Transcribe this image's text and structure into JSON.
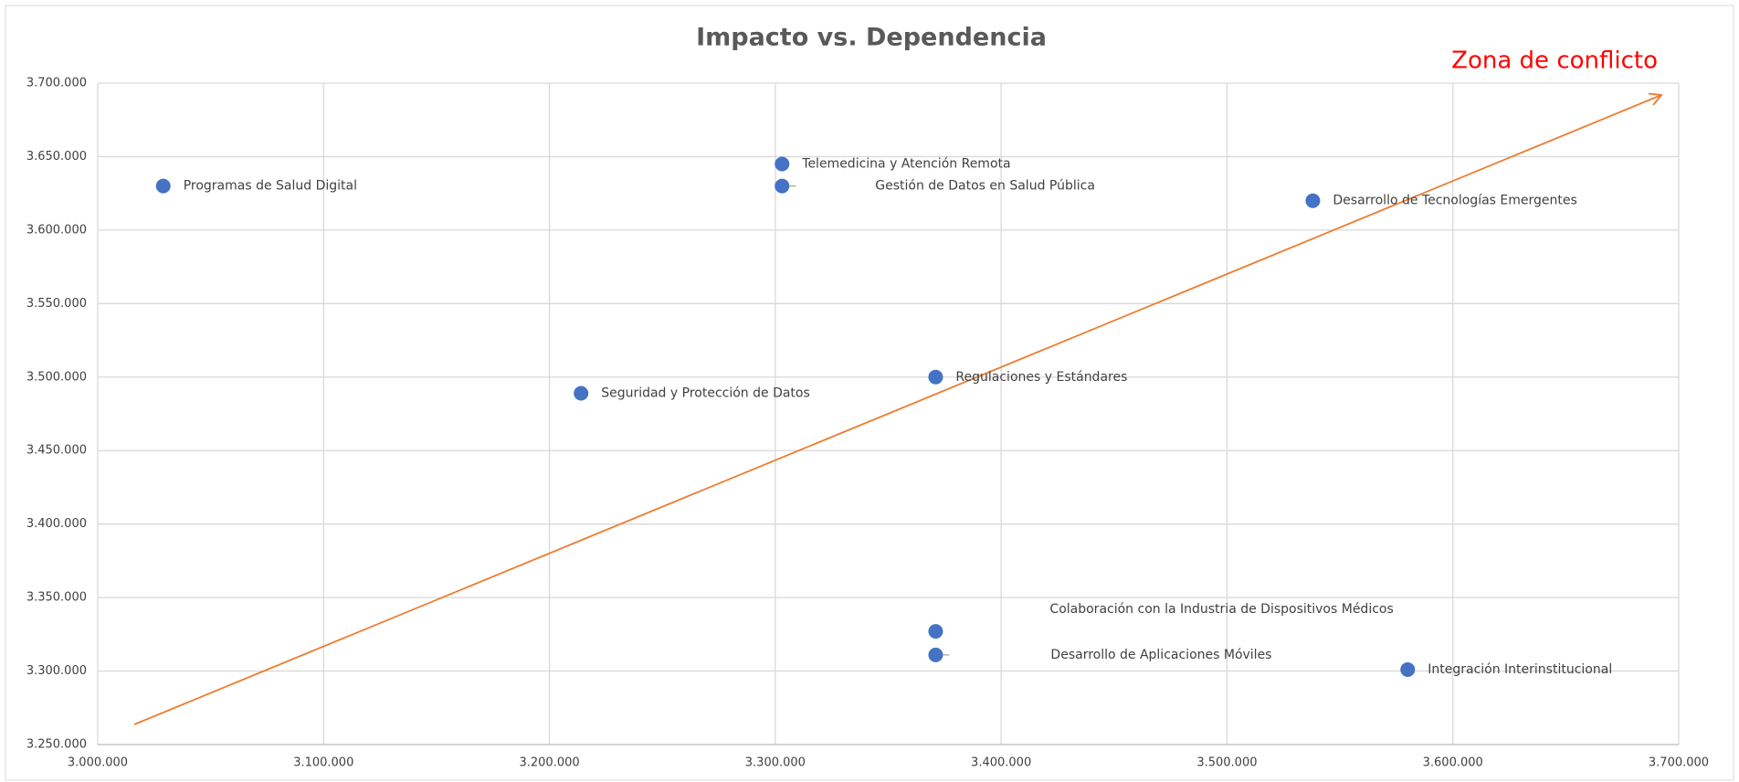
{
  "chart_data": {
    "type": "scatter",
    "title": "Impacto vs. Dependencia",
    "annotation": "Zona de conflicto",
    "labels": [
      "Programas de Salud Digital",
      "Telemedicina y Atención Remota",
      "Gestión de Datos en Salud Pública",
      "Desarrollo de Tecnologías Emergentes",
      "Seguridad y Protección de Datos",
      "Regulaciones y Estándares",
      "Colaboración con la Industria de Dispositivos Médicos",
      "Desarrollo de Aplicaciones Móviles",
      "Integración Interinstitucional"
    ],
    "x": [
      3029000,
      3303000,
      3303000,
      3538000,
      3214000,
      3371000,
      3371000,
      3371000,
      3580000
    ],
    "values": [
      3630000,
      3645000,
      3630000,
      3620000,
      3489000,
      3500000,
      3327000,
      3311000,
      3301000
    ],
    "color": "#4472c4",
    "xlim": [
      3000000,
      3700000
    ],
    "xticks": [
      {
        "value": 3000000,
        "label": "3.000.000"
      },
      {
        "value": 3100000,
        "label": "3.100.000"
      },
      {
        "value": 3200000,
        "label": "3.200.000"
      },
      {
        "value": 3300000,
        "label": "3.300.000"
      },
      {
        "value": 3400000,
        "label": "3.400.000"
      },
      {
        "value": 3500000,
        "label": "3.500.000"
      },
      {
        "value": 3600000,
        "label": "3.600.000"
      },
      {
        "value": 3700000,
        "label": "3.700.000"
      }
    ],
    "ylim": [
      3250000,
      3700000
    ],
    "yticks": [
      {
        "value": 3250000,
        "label": "3.250.000"
      },
      {
        "value": 3300000,
        "label": "3.300.000"
      },
      {
        "value": 3350000,
        "label": "3.350.000"
      },
      {
        "value": 3400000,
        "label": "3.400.000"
      },
      {
        "value": 3450000,
        "label": "3.450.000"
      },
      {
        "value": 3500000,
        "label": "3.500.000"
      },
      {
        "value": 3550000,
        "label": "3.550.000"
      },
      {
        "value": 3600000,
        "label": "3.600.000"
      },
      {
        "value": 3650000,
        "label": "3.650.000"
      },
      {
        "value": 3700000,
        "label": "3.700.000"
      }
    ],
    "grid": true
  }
}
